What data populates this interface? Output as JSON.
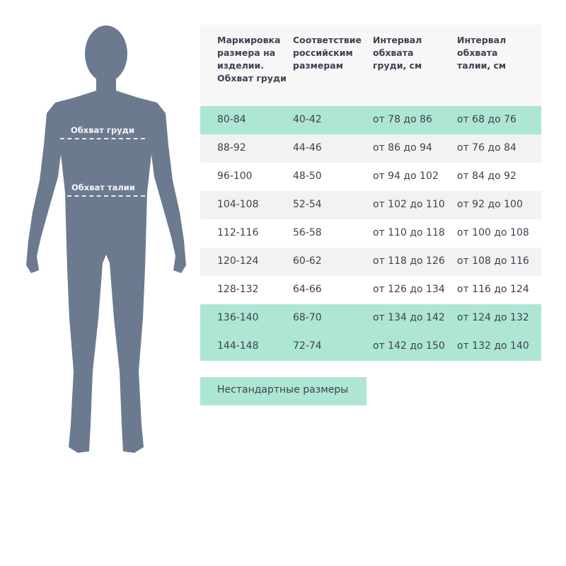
{
  "figure": {
    "chest_label": "Обхват груди",
    "waist_label": "Обхват талии",
    "body_color": "#6b7a8f"
  },
  "table": {
    "headers": [
      "Маркировка размера на изделии. Обхват груди",
      "Соответствие российским размерам",
      "Интервал обхвата груди, см",
      "Интервал обхвата талии, см"
    ],
    "rows": [
      {
        "cells": [
          "80-84",
          "40-42",
          "от 78 до 86",
          "от 68 до 76"
        ],
        "style": "green"
      },
      {
        "cells": [
          "88-92",
          "44-46",
          "от 86 до 94",
          "от 76 до 84"
        ],
        "style": "gray"
      },
      {
        "cells": [
          "96-100",
          "48-50",
          "от 94 до 102",
          "от 84 до 92"
        ],
        "style": "white"
      },
      {
        "cells": [
          "104-108",
          "52-54",
          "от 102 до 110",
          "от 92 до 100"
        ],
        "style": "gray"
      },
      {
        "cells": [
          "112-116",
          "56-58",
          "от 110 до 118",
          "от 100 до 108"
        ],
        "style": "white"
      },
      {
        "cells": [
          "120-124",
          "60-62",
          "от 118 до 126",
          "от 108 до 116"
        ],
        "style": "gray"
      },
      {
        "cells": [
          "128-132",
          "64-66",
          "от 126 до 134",
          "от 116 до 124"
        ],
        "style": "white"
      },
      {
        "cells": [
          "136-140",
          "68-70",
          "от 134 до 142",
          "от 124 до 132"
        ],
        "style": "green"
      },
      {
        "cells": [
          "144-148",
          "72-74",
          "от 142 до 150",
          "от 132 до 140"
        ],
        "style": "green"
      }
    ]
  },
  "nonstandard_button": "Нестандартные размеры",
  "colors": {
    "accent": "#aee6d4",
    "stripe": "#f2f2f2",
    "header_bg": "#f7f7f7"
  }
}
